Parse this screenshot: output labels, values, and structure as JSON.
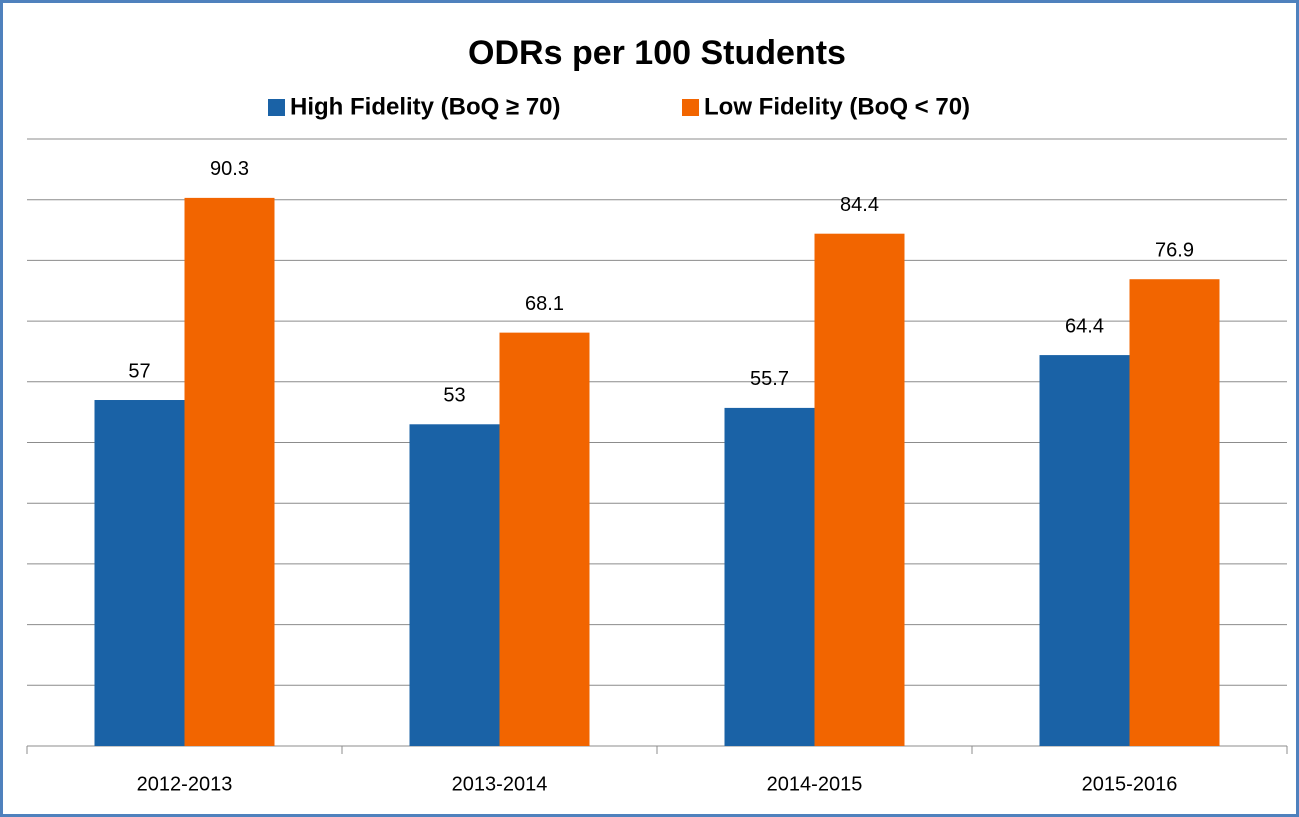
{
  "chart_data": {
    "type": "bar",
    "title": "ODRs per 100 Students",
    "categories": [
      "2012-2013",
      "2013-2014",
      "2014-2015",
      "2015-2016"
    ],
    "series": [
      {
        "name": "High Fidelity (BoQ ≥ 70)",
        "color": "#1a62a6",
        "values": [
          57,
          53,
          55.7,
          64.4
        ]
      },
      {
        "name": "Low Fidelity (BoQ < 70)",
        "color": "#f26500",
        "values": [
          90.3,
          68.1,
          84.4,
          76.9
        ]
      }
    ],
    "ylim": [
      0,
      100
    ],
    "yticks": [
      0,
      10,
      20,
      30,
      40,
      50,
      60,
      70,
      80,
      90,
      100
    ],
    "grid": true,
    "legend": "top"
  }
}
